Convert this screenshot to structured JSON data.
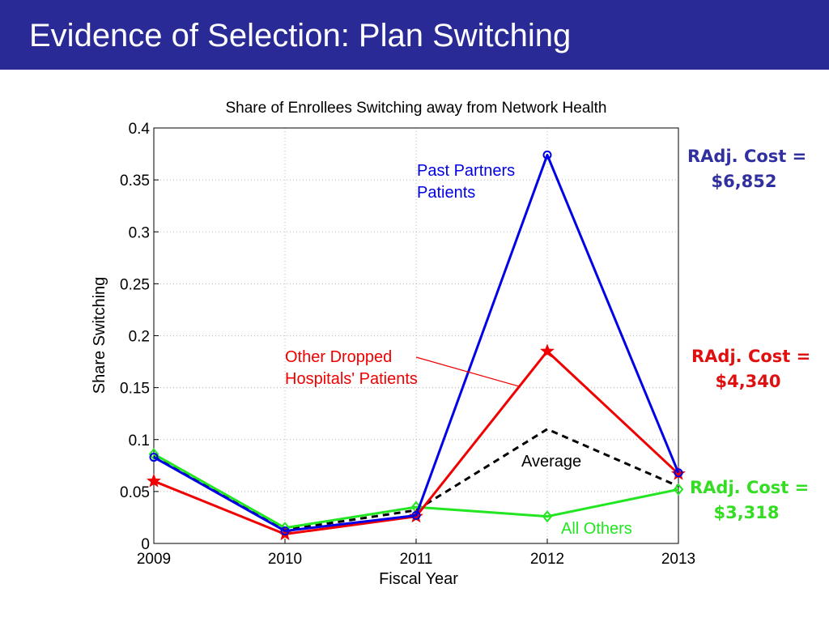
{
  "slide": {
    "title": "Evidence of Selection: Plan Switching"
  },
  "colors": {
    "header_bg": "#2a2a96",
    "blue": "#0000e6",
    "red": "#f00000",
    "green": "#22e622",
    "black": "#000000",
    "cost_blue": "#3030a0",
    "cost_red": "#e01010",
    "cost_green": "#33dd22"
  },
  "chart_data": {
    "type": "line",
    "title": "Share of Enrollees Switching away from Network Health",
    "xlabel": "Fiscal Year",
    "ylabel": "Share Switching",
    "categories": [
      "2009",
      "2010",
      "2011",
      "2012",
      "2013"
    ],
    "x_ticks": [
      "2009",
      "2010",
      "2011",
      "2012",
      "2013"
    ],
    "y_ticks": [
      "0",
      "0.05",
      "0.1",
      "0.15",
      "0.2",
      "0.25",
      "0.3",
      "0.35",
      "0.4"
    ],
    "ylim": [
      0,
      0.4
    ],
    "grid": true,
    "series": [
      {
        "name": "Past Partners Patients",
        "values": [
          0.083,
          0.012,
          0.027,
          0.374,
          0.068
        ],
        "color": "#0000e6",
        "marker": "circle",
        "dash": ""
      },
      {
        "name": "Other Dropped Hospitals' Patients",
        "values": [
          0.06,
          0.009,
          0.026,
          0.185,
          0.067
        ],
        "color": "#f00000",
        "marker": "star",
        "dash": ""
      },
      {
        "name": "All Others",
        "values": [
          0.086,
          0.015,
          0.035,
          0.026,
          0.052
        ],
        "color": "#22e622",
        "marker": "diamond",
        "dash": ""
      },
      {
        "name": "Average",
        "values": [
          0.084,
          0.013,
          0.032,
          0.11,
          0.055
        ],
        "color": "#000000",
        "marker": "none",
        "dash": "8,6"
      }
    ],
    "annotations": {
      "past_partners_line1": "Past Partners",
      "past_partners_line2": "Patients",
      "other_dropped_line1": "Other Dropped",
      "other_dropped_line2": "Hospitals' Patients",
      "average": "Average",
      "all_others": "All Others"
    }
  },
  "costs": {
    "blue": {
      "line1": "RAdj. Cost =",
      "line2": "$6,852"
    },
    "red": {
      "line1": "RAdj. Cost =",
      "line2": "$4,340"
    },
    "green": {
      "line1": "RAdj. Cost =",
      "line2": "$3,318"
    }
  }
}
